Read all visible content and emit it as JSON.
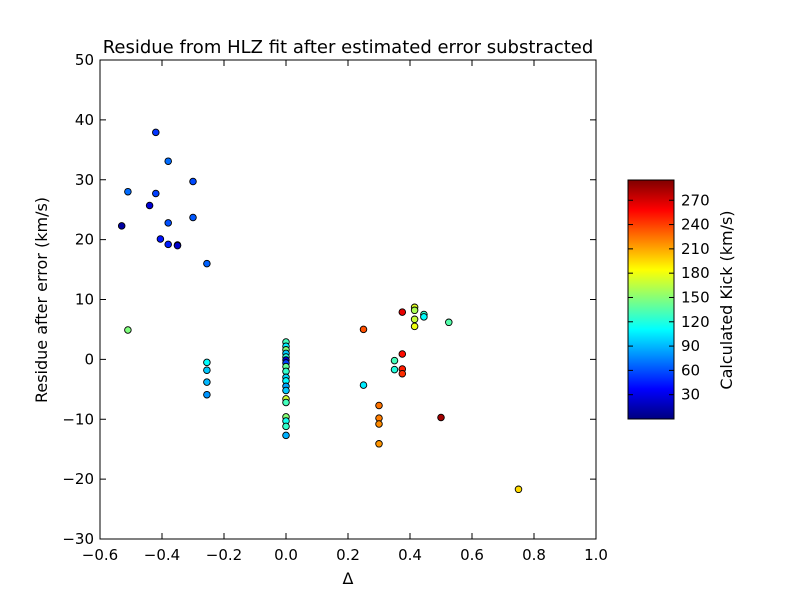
{
  "chart_data": {
    "type": "scatter",
    "title": "Residue from HLZ fit after estimated error substracted",
    "xlabel": "Δ",
    "ylabel": "Residue after error (km/s)",
    "xlim": [
      -0.6,
      1.0
    ],
    "ylim": [
      -30,
      50
    ],
    "xticks": [
      -0.6,
      -0.4,
      -0.2,
      0.0,
      0.2,
      0.4,
      0.6,
      0.8,
      1.0
    ],
    "xtick_labels": [
      "−0.6",
      "−0.4",
      "−0.2",
      "0.0",
      "0.2",
      "0.4",
      "0.6",
      "0.8",
      "1.0"
    ],
    "yticks": [
      -30,
      -20,
      -10,
      0,
      10,
      20,
      30,
      40,
      50
    ],
    "ytick_labels": [
      "−30",
      "−20",
      "−10",
      "0",
      "10",
      "20",
      "30",
      "40",
      "50"
    ],
    "grid": false,
    "colorbar": {
      "label": "Calculated Kick (km/s)",
      "colormap": "jet",
      "range": [
        0,
        295
      ],
      "ticks": [
        30,
        60,
        90,
        120,
        150,
        180,
        210,
        240,
        270
      ],
      "tick_labels": [
        "30",
        "60",
        "90",
        "120",
        "150",
        "180",
        "210",
        "240",
        "270"
      ]
    },
    "points": [
      {
        "x": -0.53,
        "y": 22.3,
        "c": 10
      },
      {
        "x": -0.51,
        "y": 28.0,
        "c": 68
      },
      {
        "x": -0.51,
        "y": 4.9,
        "c": 148
      },
      {
        "x": -0.44,
        "y": 25.7,
        "c": 25
      },
      {
        "x": -0.42,
        "y": 37.9,
        "c": 52
      },
      {
        "x": -0.42,
        "y": 27.7,
        "c": 55
      },
      {
        "x": -0.405,
        "y": 20.1,
        "c": 42
      },
      {
        "x": -0.38,
        "y": 33.1,
        "c": 68
      },
      {
        "x": -0.38,
        "y": 22.8,
        "c": 60
      },
      {
        "x": -0.38,
        "y": 19.2,
        "c": 45
      },
      {
        "x": -0.35,
        "y": 19.1,
        "c": 35
      },
      {
        "x": -0.35,
        "y": 19.0,
        "c": 22
      },
      {
        "x": -0.3,
        "y": 29.7,
        "c": 58
      },
      {
        "x": -0.3,
        "y": 23.7,
        "c": 62
      },
      {
        "x": -0.255,
        "y": 16.0,
        "c": 65
      },
      {
        "x": -0.255,
        "y": -0.5,
        "c": 110
      },
      {
        "x": -0.255,
        "y": -1.8,
        "c": 95
      },
      {
        "x": -0.255,
        "y": -3.8,
        "c": 90
      },
      {
        "x": -0.255,
        "y": -5.9,
        "c": 80
      },
      {
        "x": 0.0,
        "y": 2.9,
        "c": 130
      },
      {
        "x": 0.0,
        "y": 2.2,
        "c": 105
      },
      {
        "x": 0.0,
        "y": 1.6,
        "c": 150
      },
      {
        "x": 0.0,
        "y": 1.0,
        "c": 95
      },
      {
        "x": 0.0,
        "y": 0.4,
        "c": 120
      },
      {
        "x": 0.0,
        "y": -0.1,
        "c": 20
      },
      {
        "x": 0.0,
        "y": -0.6,
        "c": 55
      },
      {
        "x": 0.0,
        "y": -1.2,
        "c": 140
      },
      {
        "x": 0.0,
        "y": -2.0,
        "c": 125
      },
      {
        "x": 0.0,
        "y": -3.0,
        "c": 100
      },
      {
        "x": 0.0,
        "y": -3.6,
        "c": 110
      },
      {
        "x": 0.0,
        "y": -4.5,
        "c": 85
      },
      {
        "x": 0.0,
        "y": -5.2,
        "c": 95
      },
      {
        "x": 0.0,
        "y": -6.6,
        "c": 170
      },
      {
        "x": 0.0,
        "y": -7.2,
        "c": 130
      },
      {
        "x": 0.0,
        "y": -9.6,
        "c": 150
      },
      {
        "x": 0.0,
        "y": -10.3,
        "c": 115
      },
      {
        "x": 0.0,
        "y": -11.2,
        "c": 125
      },
      {
        "x": 0.0,
        "y": -12.7,
        "c": 88
      },
      {
        "x": 0.25,
        "y": 5.0,
        "c": 235
      },
      {
        "x": 0.25,
        "y": -4.3,
        "c": 105
      },
      {
        "x": 0.3,
        "y": -7.7,
        "c": 225
      },
      {
        "x": 0.3,
        "y": -9.8,
        "c": 222
      },
      {
        "x": 0.3,
        "y": -10.8,
        "c": 218
      },
      {
        "x": 0.3,
        "y": -14.1,
        "c": 215
      },
      {
        "x": 0.35,
        "y": -0.2,
        "c": 130
      },
      {
        "x": 0.35,
        "y": -1.7,
        "c": 120
      },
      {
        "x": 0.375,
        "y": 7.9,
        "c": 265
      },
      {
        "x": 0.375,
        "y": 0.9,
        "c": 255
      },
      {
        "x": 0.375,
        "y": -1.6,
        "c": 250
      },
      {
        "x": 0.375,
        "y": -2.4,
        "c": 245
      },
      {
        "x": 0.415,
        "y": 8.7,
        "c": 175
      },
      {
        "x": 0.415,
        "y": 8.2,
        "c": 160
      },
      {
        "x": 0.415,
        "y": 6.7,
        "c": 168
      },
      {
        "x": 0.415,
        "y": 5.5,
        "c": 180
      },
      {
        "x": 0.445,
        "y": 7.5,
        "c": 125
      },
      {
        "x": 0.445,
        "y": 7.1,
        "c": 110
      },
      {
        "x": 0.5,
        "y": -9.7,
        "c": 285
      },
      {
        "x": 0.525,
        "y": 6.2,
        "c": 135
      },
      {
        "x": 0.75,
        "y": -21.7,
        "c": 195
      }
    ]
  }
}
